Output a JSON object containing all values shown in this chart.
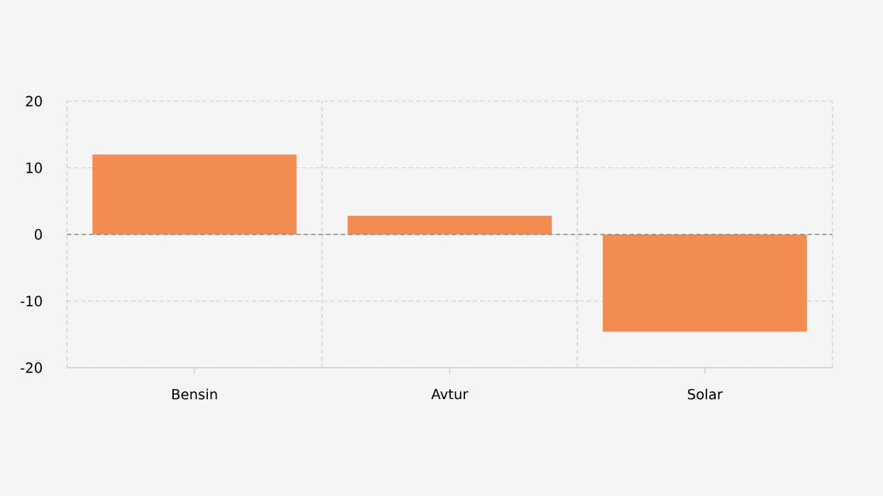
{
  "chart_data": {
    "type": "bar",
    "categories": [
      "Bensin",
      "Avtur",
      "Solar"
    ],
    "values": [
      12,
      2.8,
      -14.6
    ],
    "color": "#f28c50",
    "ylim": [
      -20,
      20
    ],
    "yticks": [
      -20,
      -10,
      0,
      10,
      20
    ],
    "grid": true,
    "ref_lines": [
      {
        "axis": "y",
        "value": 0,
        "color": "#888888",
        "line_style": "dashed"
      }
    ]
  }
}
